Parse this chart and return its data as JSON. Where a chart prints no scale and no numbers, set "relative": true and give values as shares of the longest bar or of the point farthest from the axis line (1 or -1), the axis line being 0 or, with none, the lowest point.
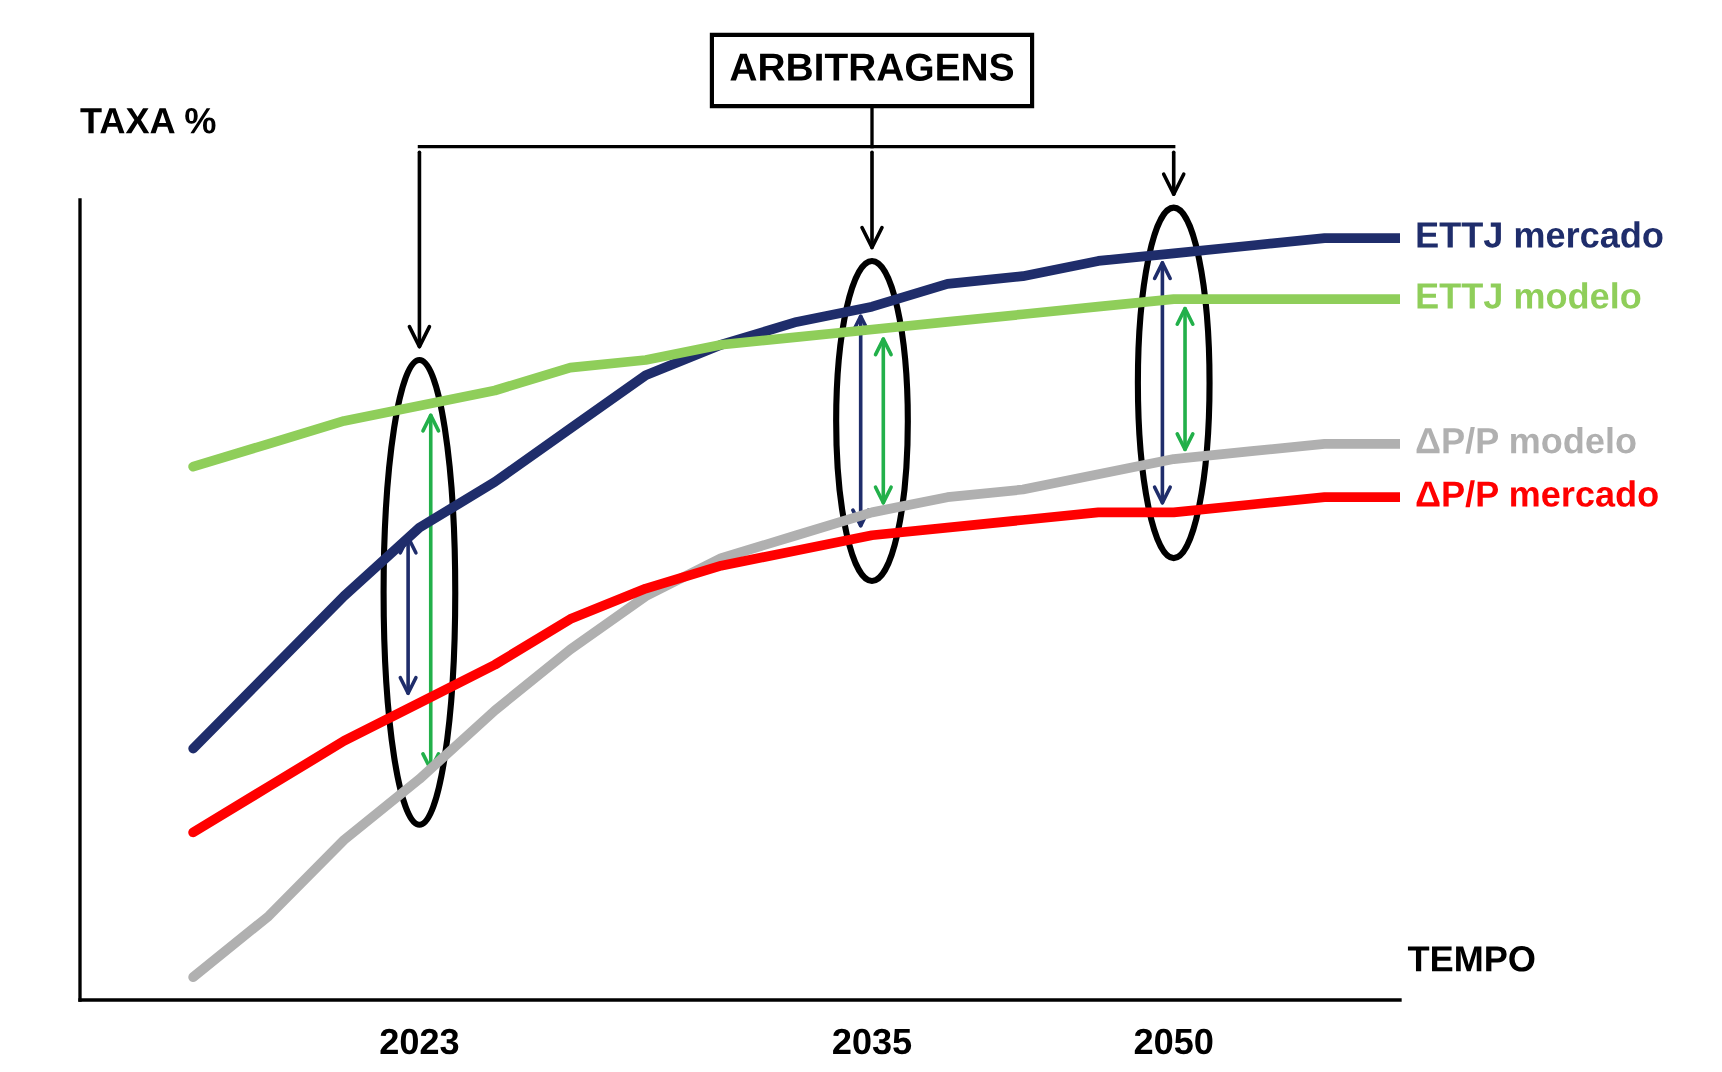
{
  "chart_data": {
    "type": "line",
    "relative": true,
    "xlabel": "TEMPO",
    "ylabel": "TAXA %",
    "categories": [
      null,
      null,
      null,
      "2023",
      null,
      null,
      null,
      null,
      null,
      "2035",
      null,
      null,
      null,
      "2050",
      null,
      null,
      null
    ],
    "annotations": [
      "ARBITRAGENS"
    ],
    "legend": false,
    "grid": false,
    "marker": "none",
    "line_style": "solid",
    "series": [
      {
        "name": "ETTJ mercado",
        "color": "#1f2d6b",
        "values": [
          0.33,
          0.43,
          0.53,
          0.62,
          0.68,
          0.75,
          0.82,
          0.86,
          0.89,
          0.91,
          0.94,
          0.95,
          0.97,
          0.98,
          0.99,
          1.0,
          1.0
        ]
      },
      {
        "name": "ETTJ modelo",
        "color": "#8fce5a",
        "values": [
          0.7,
          0.73,
          0.76,
          0.78,
          0.8,
          0.83,
          0.84,
          0.86,
          0.87,
          0.88,
          0.89,
          0.9,
          0.91,
          0.92,
          0.92,
          0.92,
          0.92
        ]
      },
      {
        "name": "ΔP/P modelo",
        "color": "#b0b0b0",
        "values": [
          0.03,
          0.11,
          0.21,
          0.29,
          0.38,
          0.46,
          0.53,
          0.58,
          0.61,
          0.64,
          0.66,
          0.67,
          0.69,
          0.71,
          0.72,
          0.73,
          0.73
        ]
      },
      {
        "name": "ΔP/P mercado",
        "color": "#ff0000",
        "values": [
          0.22,
          0.28,
          0.34,
          0.39,
          0.44,
          0.5,
          0.54,
          0.57,
          0.59,
          0.61,
          0.62,
          0.63,
          0.64,
          0.64,
          0.65,
          0.66,
          0.66
        ]
      }
    ]
  }
}
